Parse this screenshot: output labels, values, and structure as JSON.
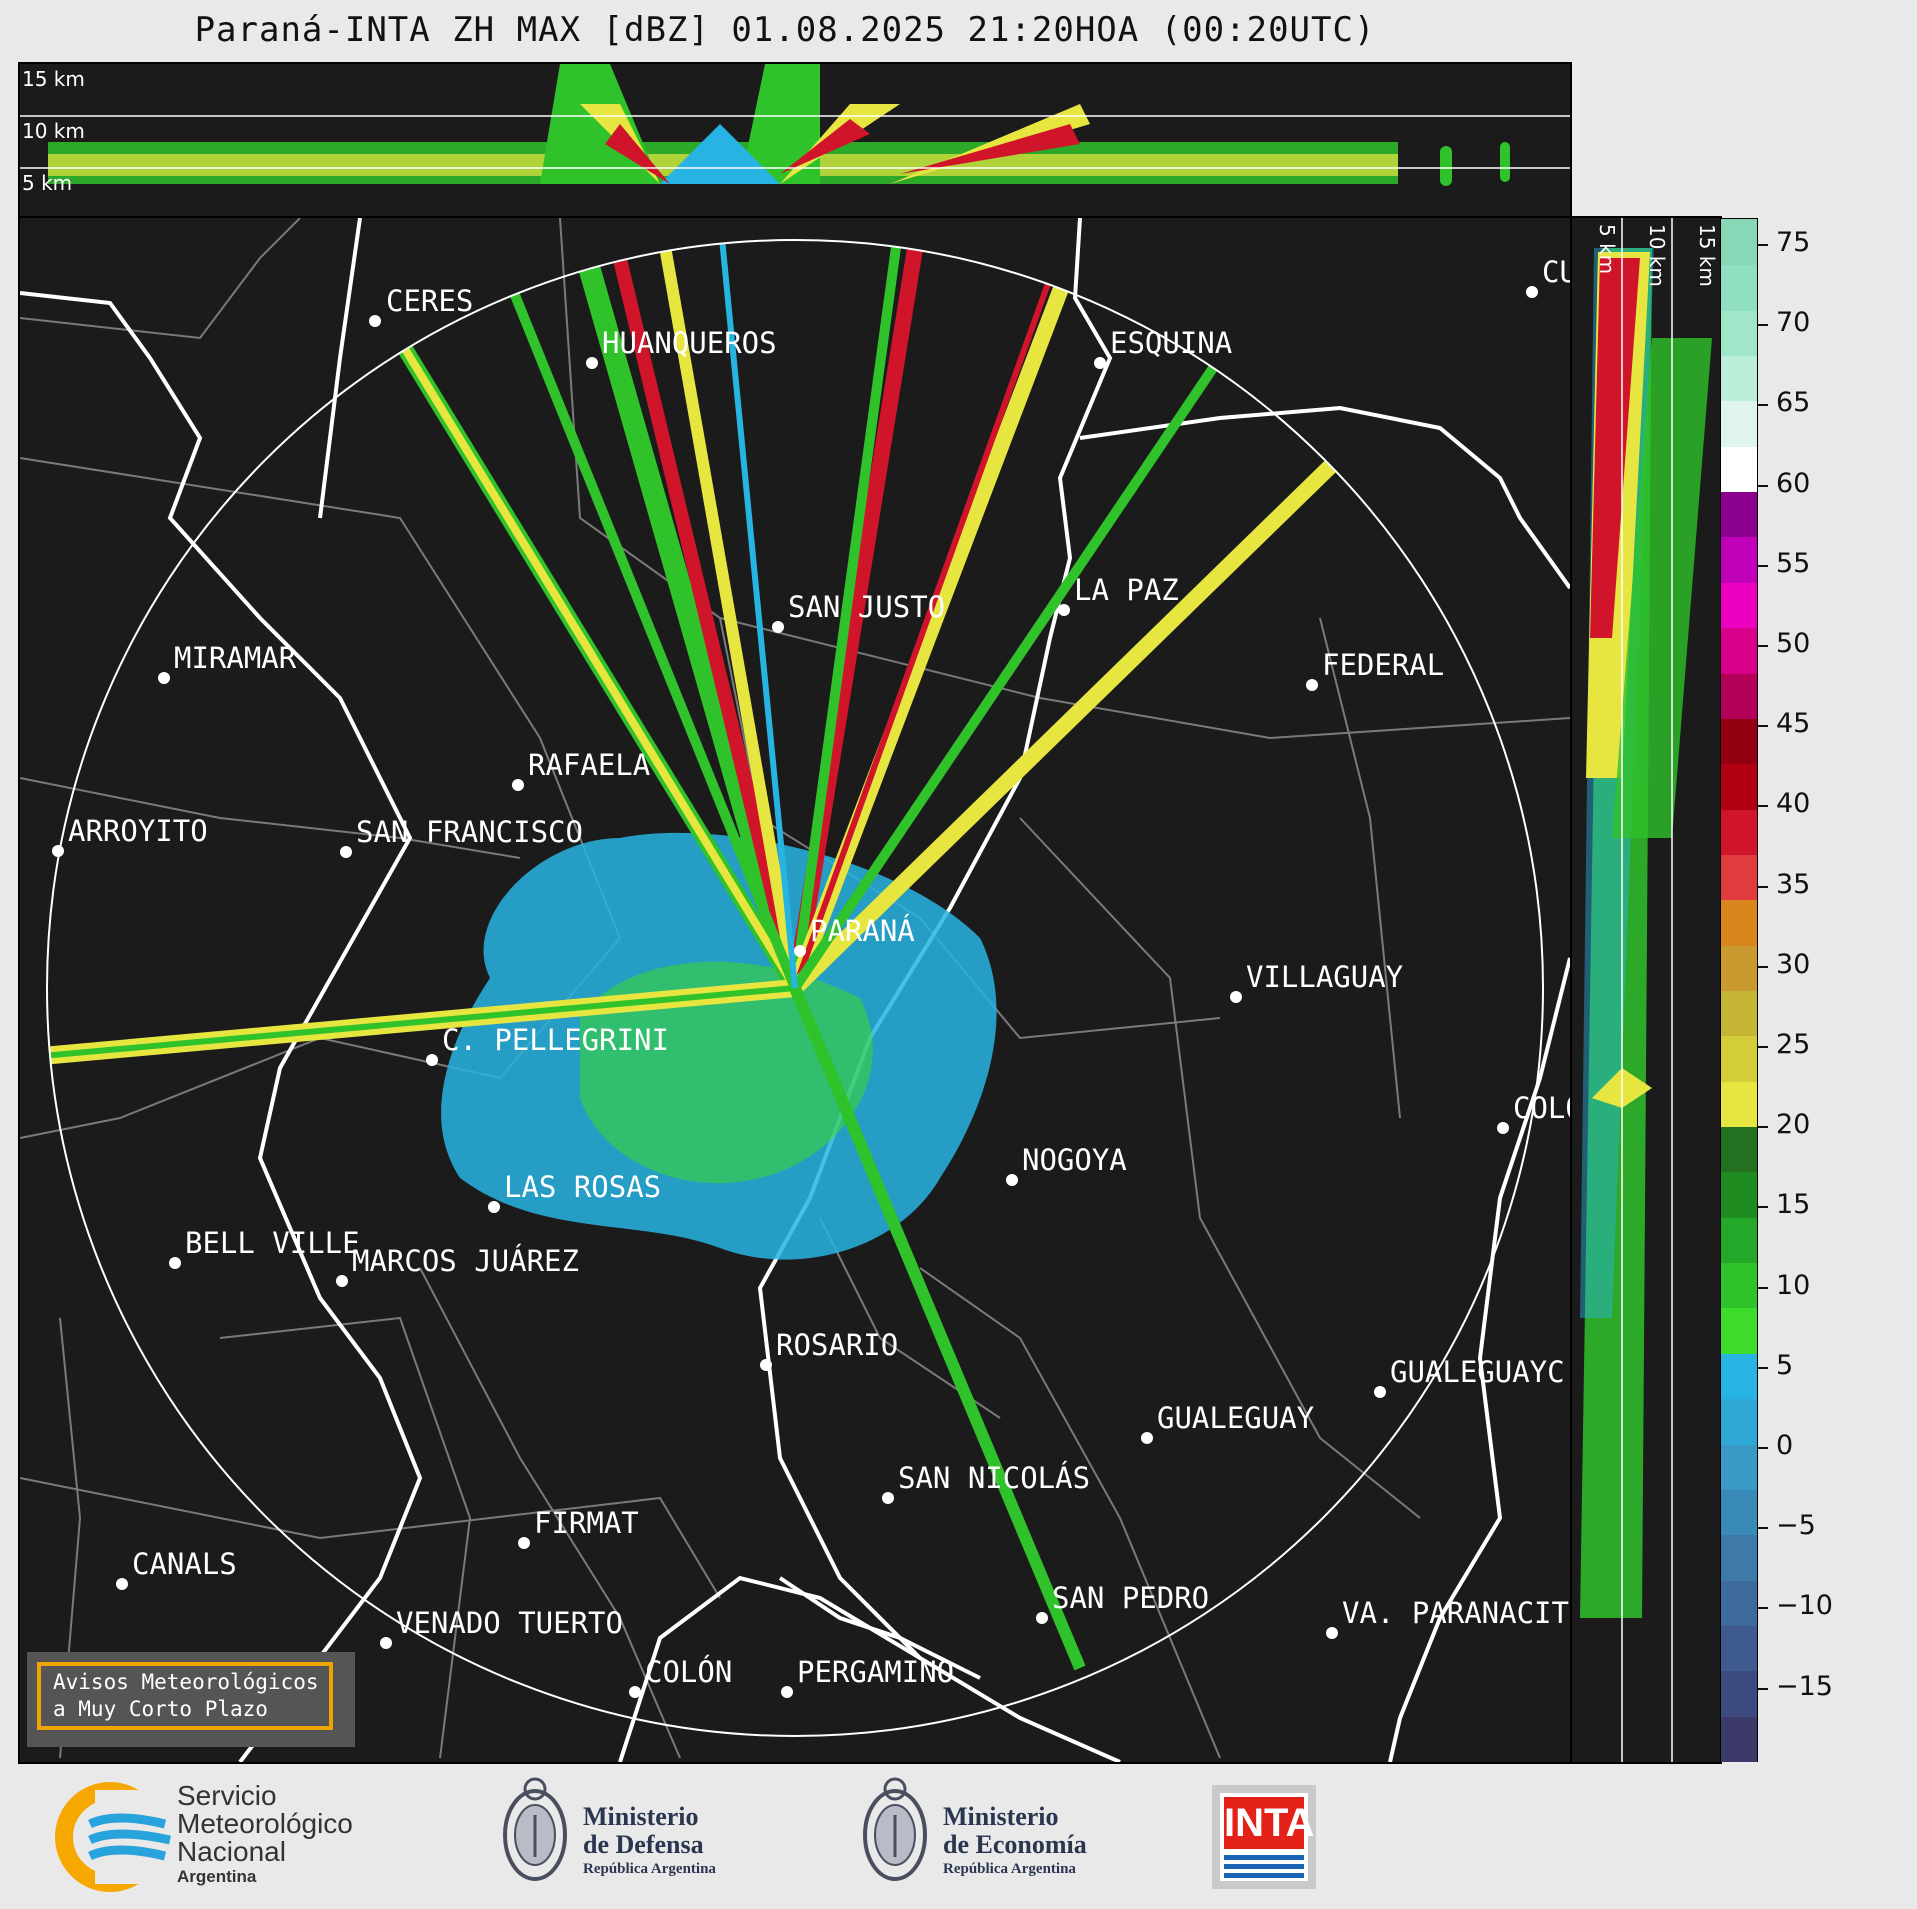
{
  "title": "Paraná-INTA ZH MAX [dBZ] 01.08.2025 21:20HOA (00:20UTC)",
  "height_labels": [
    "15 km",
    "10 km",
    "5 km"
  ],
  "cities": [
    {
      "name": "CERES"
    },
    {
      "name": "HUANQUEROS"
    },
    {
      "name": "ESQUINA"
    },
    {
      "name": "CU"
    },
    {
      "name": "MIRAMAR"
    },
    {
      "name": "SAN JUSTO"
    },
    {
      "name": "LA PAZ"
    },
    {
      "name": "FEDERAL"
    },
    {
      "name": "RAFAELA"
    },
    {
      "name": "ARROYITO"
    },
    {
      "name": "SAN FRANCISCO"
    },
    {
      "name": "PARANÁ"
    },
    {
      "name": "VILLAGUAY"
    },
    {
      "name": "C. PELLEGRINI"
    },
    {
      "name": "COLÓ"
    },
    {
      "name": "NOGOYA"
    },
    {
      "name": "LAS ROSAS"
    },
    {
      "name": "BELL VILLE"
    },
    {
      "name": "MARCOS JUÁREZ"
    },
    {
      "name": "ROSARIO"
    },
    {
      "name": "GUALEGUAYC"
    },
    {
      "name": "GUALEGUAY"
    },
    {
      "name": "SAN NICOLÁS"
    },
    {
      "name": "FIRMAT"
    },
    {
      "name": "CANALS"
    },
    {
      "name": "SAN PEDRO"
    },
    {
      "name": "VENADO TUERTO"
    },
    {
      "name": "VA. PARANACIT"
    },
    {
      "name": "COLÓN"
    },
    {
      "name": "PERGAMINO"
    }
  ],
  "colorbar": {
    "ticks": [
      "75",
      "70",
      "65",
      "60",
      "55",
      "50",
      "45",
      "40",
      "35",
      "30",
      "25",
      "20",
      "15",
      "10",
      "5",
      "0",
      "−5",
      "−10",
      "−15"
    ],
    "colors": [
      "#3b3a6b",
      "#3d4a7e",
      "#3e5a8e",
      "#3f6a9c",
      "#3d7aaa",
      "#3a8ab8",
      "#3a99c6",
      "#2ea8d5",
      "#27b4e2",
      "#3ddb2a",
      "#2fc22a",
      "#24a82a",
      "#1f8c22",
      "#237020",
      "#e7e640",
      "#d4cd3a",
      "#c5b535",
      "#c99a30",
      "#d9861f",
      "#e23b3f",
      "#d0152b",
      "#b00012",
      "#930012",
      "#b5005a",
      "#d8008a",
      "#ee00c0",
      "#c000b8",
      "#8c0090",
      "#ffffff",
      "#def4ec",
      "#bdeed9",
      "#a0e6c9",
      "#8fdfc0",
      "#88d8b8"
    ]
  },
  "notice": {
    "line1": "Avisos Meteorológicos",
    "line2": "a Muy Corto Plazo"
  },
  "logos": {
    "smn": {
      "l1": "Servicio",
      "l2": "Meteorológico",
      "l3": "Nacional",
      "l4": "Argentina"
    },
    "defensa": {
      "l1": "Ministerio",
      "l2": "de Defensa",
      "l3": "República Argentina"
    },
    "economia": {
      "l1": "Ministerio",
      "l2": "de Economía",
      "l3": "República Argentina"
    },
    "inta": {
      "label": "INTA"
    }
  }
}
